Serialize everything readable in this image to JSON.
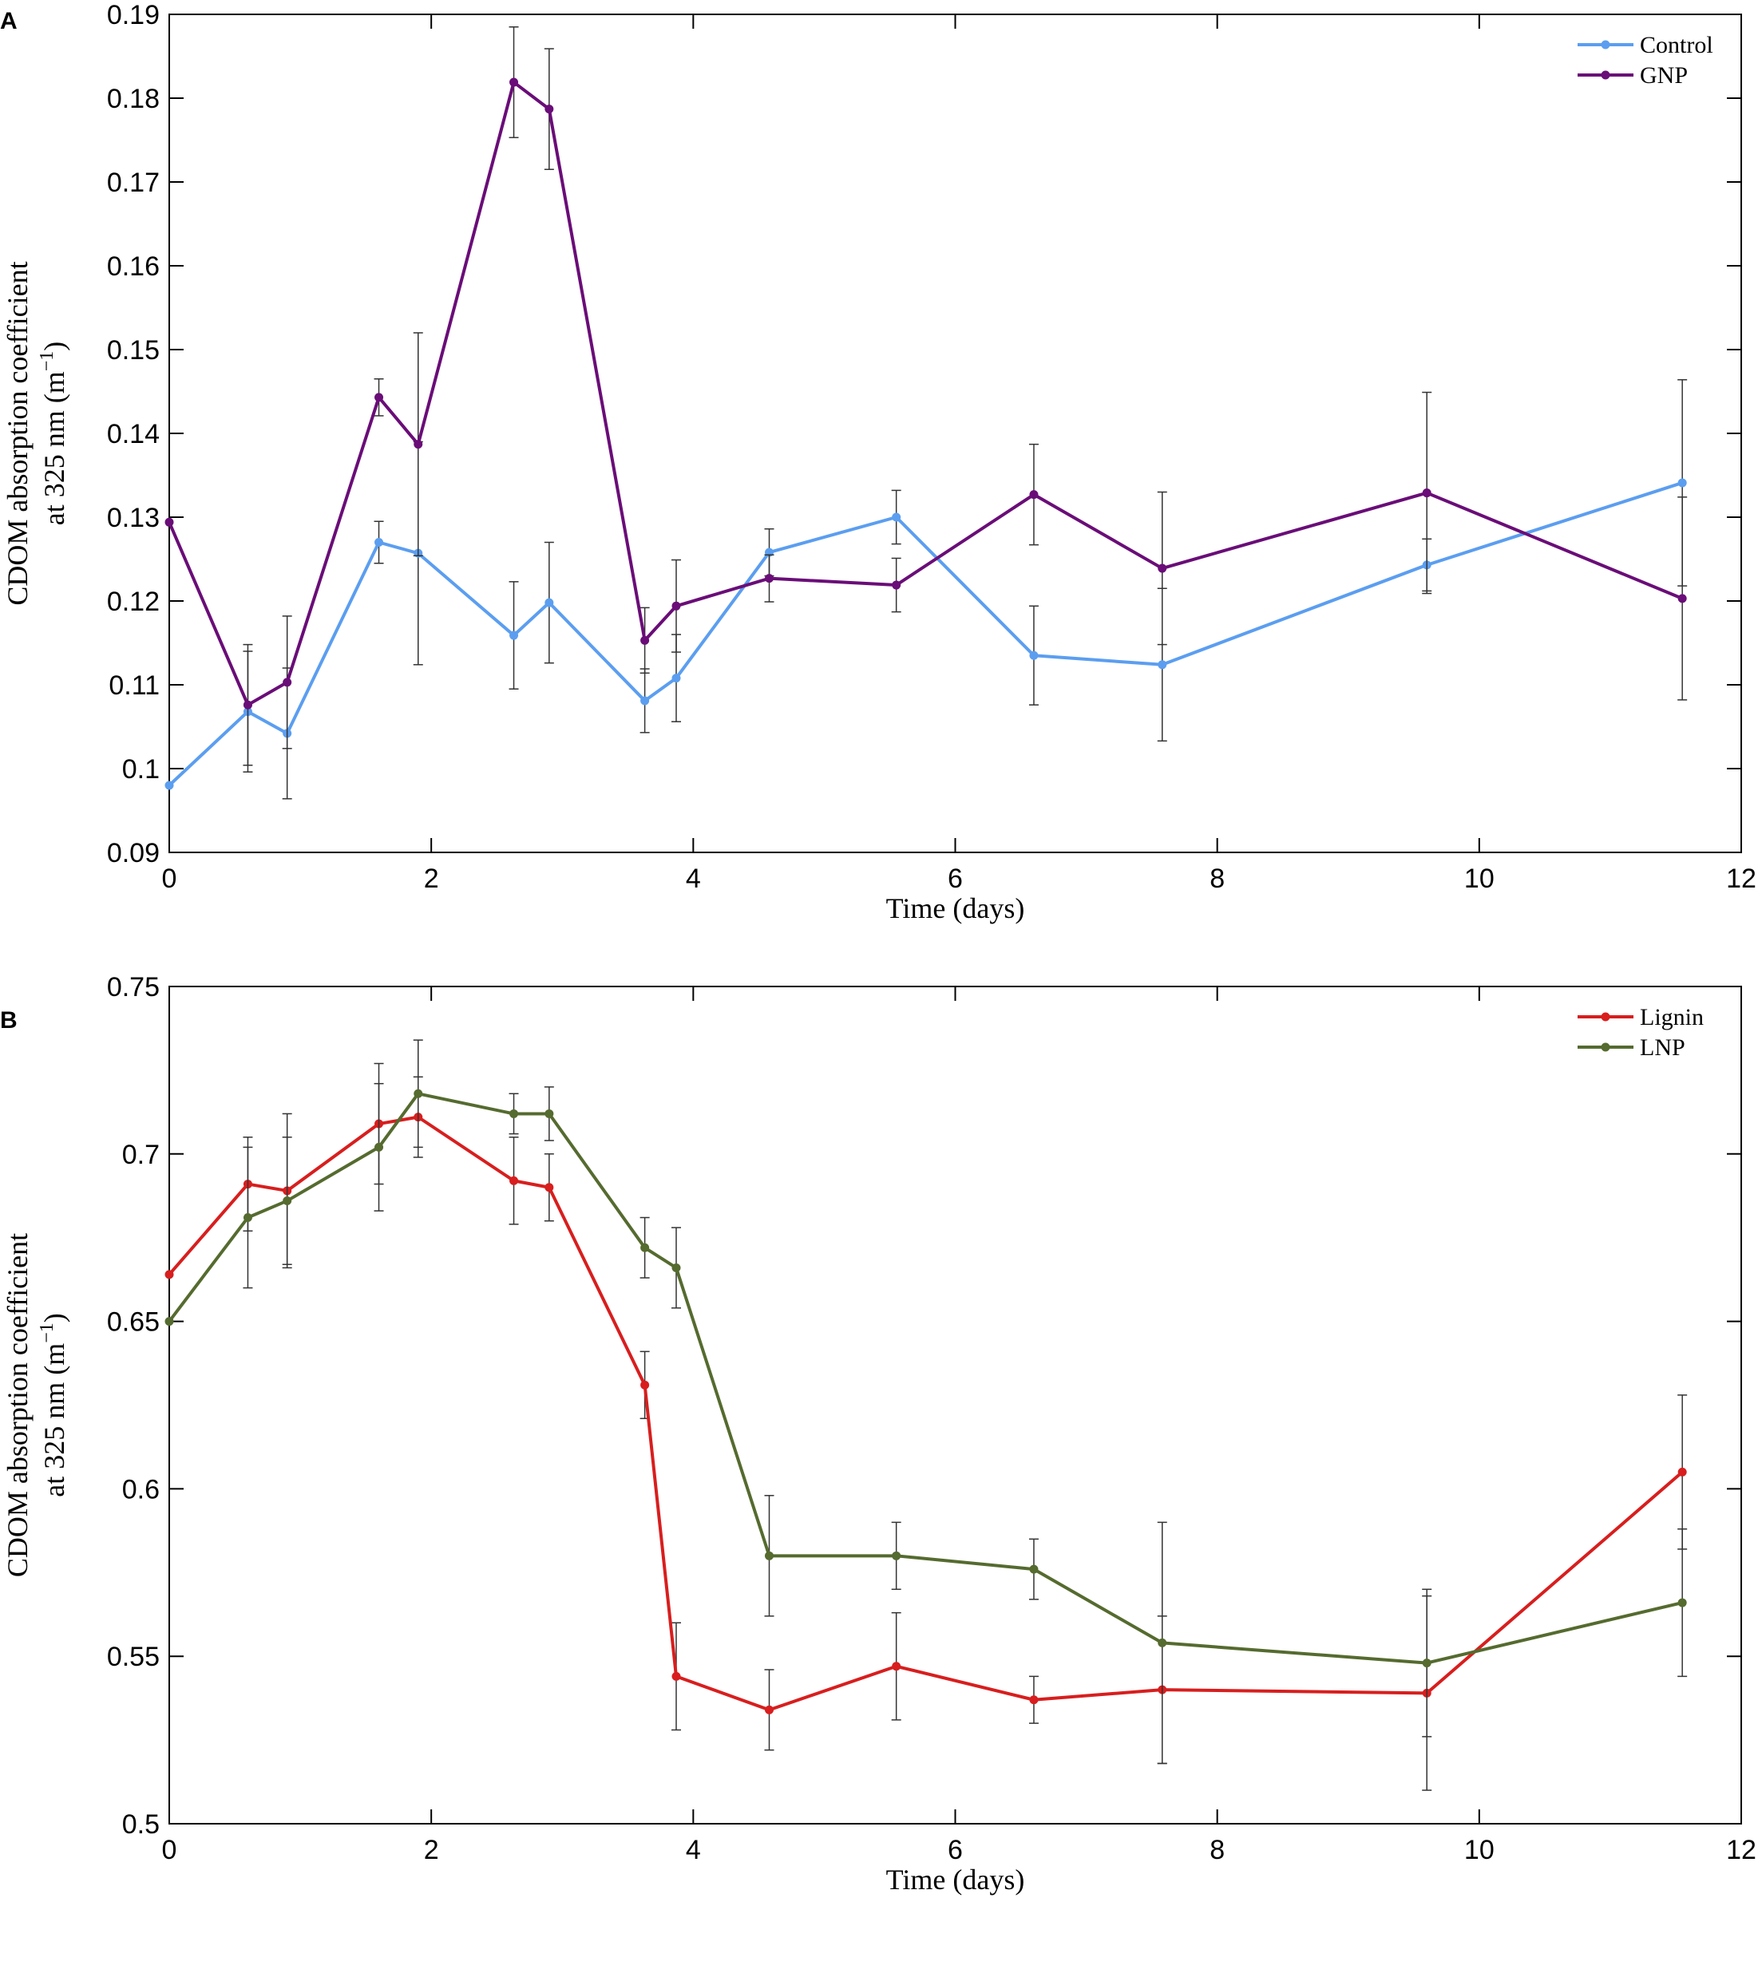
{
  "chart_data": [
    {
      "type": "line",
      "panel_label": "A",
      "xlabel": "Time (days)",
      "ylabel_line1": "CDOM absorption coefficient",
      "ylabel_line2_prefix": "at 325 nm (m",
      "ylabel_sup": "−1",
      "ylabel_line2_suffix": ")",
      "xlim": [
        0,
        12
      ],
      "ylim": [
        0.09,
        0.19
      ],
      "xticks": [
        0,
        2,
        4,
        6,
        8,
        10,
        12
      ],
      "xtick_labels": [
        "0",
        "2",
        "4",
        "6",
        "8",
        "10",
        "12"
      ],
      "yticks": [
        0.09,
        0.1,
        0.11,
        0.12,
        0.13,
        0.14,
        0.15,
        0.16,
        0.17,
        0.18,
        0.19
      ],
      "ytick_labels": [
        "0.09",
        "0.1",
        "0.11",
        "0.12",
        "0.13",
        "0.14",
        "0.15",
        "0.16",
        "0.17",
        "0.18",
        "0.19"
      ],
      "legend_position": "top-right",
      "series": [
        {
          "name": "Control",
          "color": "#5b9ef0",
          "x": [
            0,
            0.6,
            0.9,
            1.6,
            1.9,
            2.63,
            2.9,
            3.63,
            3.87,
            4.58,
            5.55,
            6.6,
            7.58,
            9.6,
            11.55
          ],
          "y": [
            0.098,
            0.1068,
            0.1042,
            0.127,
            0.1257,
            0.1159,
            0.1198,
            0.1081,
            0.1108,
            0.1258,
            0.13,
            0.1135,
            0.1124,
            0.1243,
            0.1341
          ],
          "err": [
            0,
            0.0072,
            0.0078,
            0.0025,
            0.0133,
            0.0064,
            0.0072,
            0.0038,
            0.0052,
            0.0028,
            0.0032,
            0.0059,
            0.0091,
            0.0031,
            0.0123
          ]
        },
        {
          "name": "GNP",
          "color": "#6a0d78",
          "x": [
            0,
            0.6,
            0.9,
            1.6,
            1.9,
            2.63,
            2.9,
            3.63,
            3.87,
            4.58,
            5.55,
            6.6,
            7.58,
            9.6,
            11.55
          ],
          "y": [
            0.1294,
            0.1076,
            0.1103,
            0.1443,
            0.1387,
            0.1819,
            0.1787,
            0.1153,
            0.1194,
            0.1227,
            0.1219,
            0.1327,
            0.1239,
            0.1329,
            0.1203
          ],
          "err": [
            0,
            0.0072,
            0.0079,
            0.0022,
            0.0133,
            0.0066,
            0.0072,
            0.0039,
            0.0055,
            0.0028,
            0.0032,
            0.006,
            0.0091,
            0.012,
            0.0121
          ]
        }
      ]
    },
    {
      "type": "line",
      "panel_label": "B",
      "xlabel": "Time (days)",
      "ylabel_line1": "CDOM absorption coefficient",
      "ylabel_line2_prefix": "at 325 nm (m",
      "ylabel_sup": "−1",
      "ylabel_line2_suffix": ")",
      "xlim": [
        0,
        12
      ],
      "ylim": [
        0.5,
        0.75
      ],
      "xticks": [
        0,
        2,
        4,
        6,
        8,
        10,
        12
      ],
      "xtick_labels": [
        "0",
        "2",
        "4",
        "6",
        "8",
        "10",
        "12"
      ],
      "yticks": [
        0.5,
        0.55,
        0.6,
        0.65,
        0.7,
        0.75
      ],
      "ytick_labels": [
        "0.5",
        "0.55",
        "0.6",
        "0.65",
        "0.7",
        "0.75"
      ],
      "legend_position": "top-right",
      "series": [
        {
          "name": "Lignin",
          "color": "#d81e1e",
          "x": [
            0,
            0.6,
            0.9,
            1.6,
            1.9,
            2.63,
            2.9,
            3.63,
            3.87,
            4.58,
            5.55,
            6.6,
            7.58,
            9.6,
            11.55
          ],
          "y": [
            0.664,
            0.691,
            0.689,
            0.709,
            0.711,
            0.692,
            0.69,
            0.631,
            0.544,
            0.534,
            0.547,
            0.537,
            0.54,
            0.539,
            0.605
          ],
          "err": [
            0,
            0.014,
            0.023,
            0.018,
            0.012,
            0.013,
            0.01,
            0.01,
            0.016,
            0.012,
            0.016,
            0.007,
            0.022,
            0.029,
            0.023
          ]
        },
        {
          "name": "LNP",
          "color": "#556b2f",
          "x": [
            0,
            0.6,
            0.9,
            1.6,
            1.9,
            2.63,
            2.9,
            3.63,
            3.87,
            4.58,
            5.55,
            6.6,
            7.58,
            9.6,
            11.55
          ],
          "y": [
            0.65,
            0.681,
            0.686,
            0.702,
            0.718,
            0.712,
            0.712,
            0.672,
            0.666,
            0.58,
            0.58,
            0.576,
            0.554,
            0.548,
            0.566
          ],
          "err": [
            0,
            0.021,
            0.019,
            0.019,
            0.016,
            0.006,
            0.008,
            0.009,
            0.012,
            0.018,
            0.01,
            0.009,
            0.036,
            0.022,
            0.022
          ]
        }
      ]
    }
  ]
}
